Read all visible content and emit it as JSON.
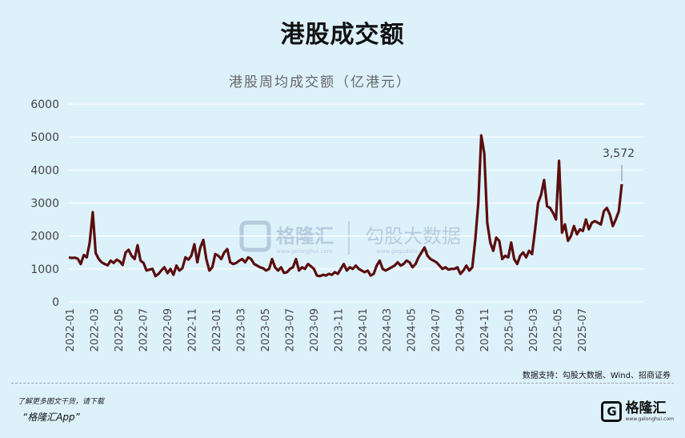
{
  "page_title": "港股成交额",
  "watermark": {
    "brand": "格隆汇",
    "brand_url": "www.gelonghui.com",
    "partner": "勾股大数据",
    "partner_url": "www.gogudata.com"
  },
  "source_note": "数据支持：勾股大数据、Wind、招商证券",
  "footer": {
    "tip": "了解更多图文干货，请下载",
    "app": "“格隆汇App”",
    "logo_mark": "G",
    "logo_name": "格隆汇",
    "logo_url": "www.gelonghui.com"
  },
  "colors": {
    "background": "#ddf1fb",
    "line": "#5a0d0d",
    "grid": "#ffffff",
    "axis_text": "#444444"
  },
  "chart_data": {
    "type": "line",
    "title": "港股周均成交额（亿港元）",
    "xlabel": "",
    "ylabel": "",
    "ylim": [
      0,
      6000
    ],
    "yticks": [
      0,
      1000,
      2000,
      3000,
      4000,
      5000,
      6000
    ],
    "grid": true,
    "x_tick_labels": [
      "2022-01",
      "2022-03",
      "2022-05",
      "2022-07",
      "2022-09",
      "2022-11",
      "2023-01",
      "2023-03",
      "2023-05",
      "2023-07",
      "2023-09",
      "2023-11",
      "2024-01",
      "2024-03",
      "2024-05",
      "2024-07",
      "2024-09",
      "2024-11",
      "2025-01",
      "2025-03",
      "2025-05",
      "2025-07"
    ],
    "annotation": {
      "text": "3,572",
      "value": 3572
    },
    "series": [
      {
        "values": [
          1350,
          1330,
          1340,
          1310,
          1150,
          1420,
          1350,
          1800,
          2720,
          1480,
          1300,
          1200,
          1150,
          1110,
          1250,
          1180,
          1280,
          1230,
          1120,
          1500,
          1580,
          1400,
          1300,
          1720,
          1250,
          1180,
          950,
          980,
          1000,
          780,
          850,
          960,
          1050,
          870,
          1000,
          820,
          1100,
          950,
          1020,
          1350,
          1280,
          1400,
          1750,
          1200,
          1650,
          1880,
          1300,
          950,
          1050,
          1450,
          1400,
          1300,
          1500,
          1600,
          1200,
          1150,
          1180,
          1250,
          1300,
          1200,
          1350,
          1300,
          1150,
          1100,
          1050,
          1020,
          950,
          1000,
          1300,
          1050,
          950,
          1050,
          880,
          900,
          1000,
          1050,
          1300,
          950,
          1050,
          1000,
          1150,
          1080,
          1000,
          800,
          780,
          820,
          800,
          850,
          820,
          900,
          850,
          1000,
          1150,
          950,
          1050,
          1000,
          1100,
          1000,
          950,
          900,
          950,
          800,
          850,
          1100,
          1250,
          1000,
          950,
          1000,
          1050,
          1100,
          1200,
          1100,
          1150,
          1250,
          1200,
          1050,
          1150,
          1350,
          1500,
          1650,
          1400,
          1300,
          1250,
          1200,
          1100,
          1000,
          1050,
          980,
          1000,
          1000,
          1050,
          850,
          950,
          1100,
          950,
          1050,
          1900,
          3000,
          5050,
          4500,
          2400,
          1800,
          1550,
          1950,
          1850,
          1300,
          1400,
          1350,
          1800,
          1300,
          1150,
          1400,
          1500,
          1350,
          1550,
          1450,
          2200,
          3000,
          3250,
          3700,
          2900,
          2850,
          2700,
          2500,
          4280,
          2100,
          2350,
          1850,
          2000,
          2300,
          2050,
          2200,
          2150,
          2500,
          2200,
          2400,
          2450,
          2400,
          2350,
          2750,
          2850,
          2650,
          2300,
          2500,
          2750,
          3572
        ]
      }
    ]
  }
}
